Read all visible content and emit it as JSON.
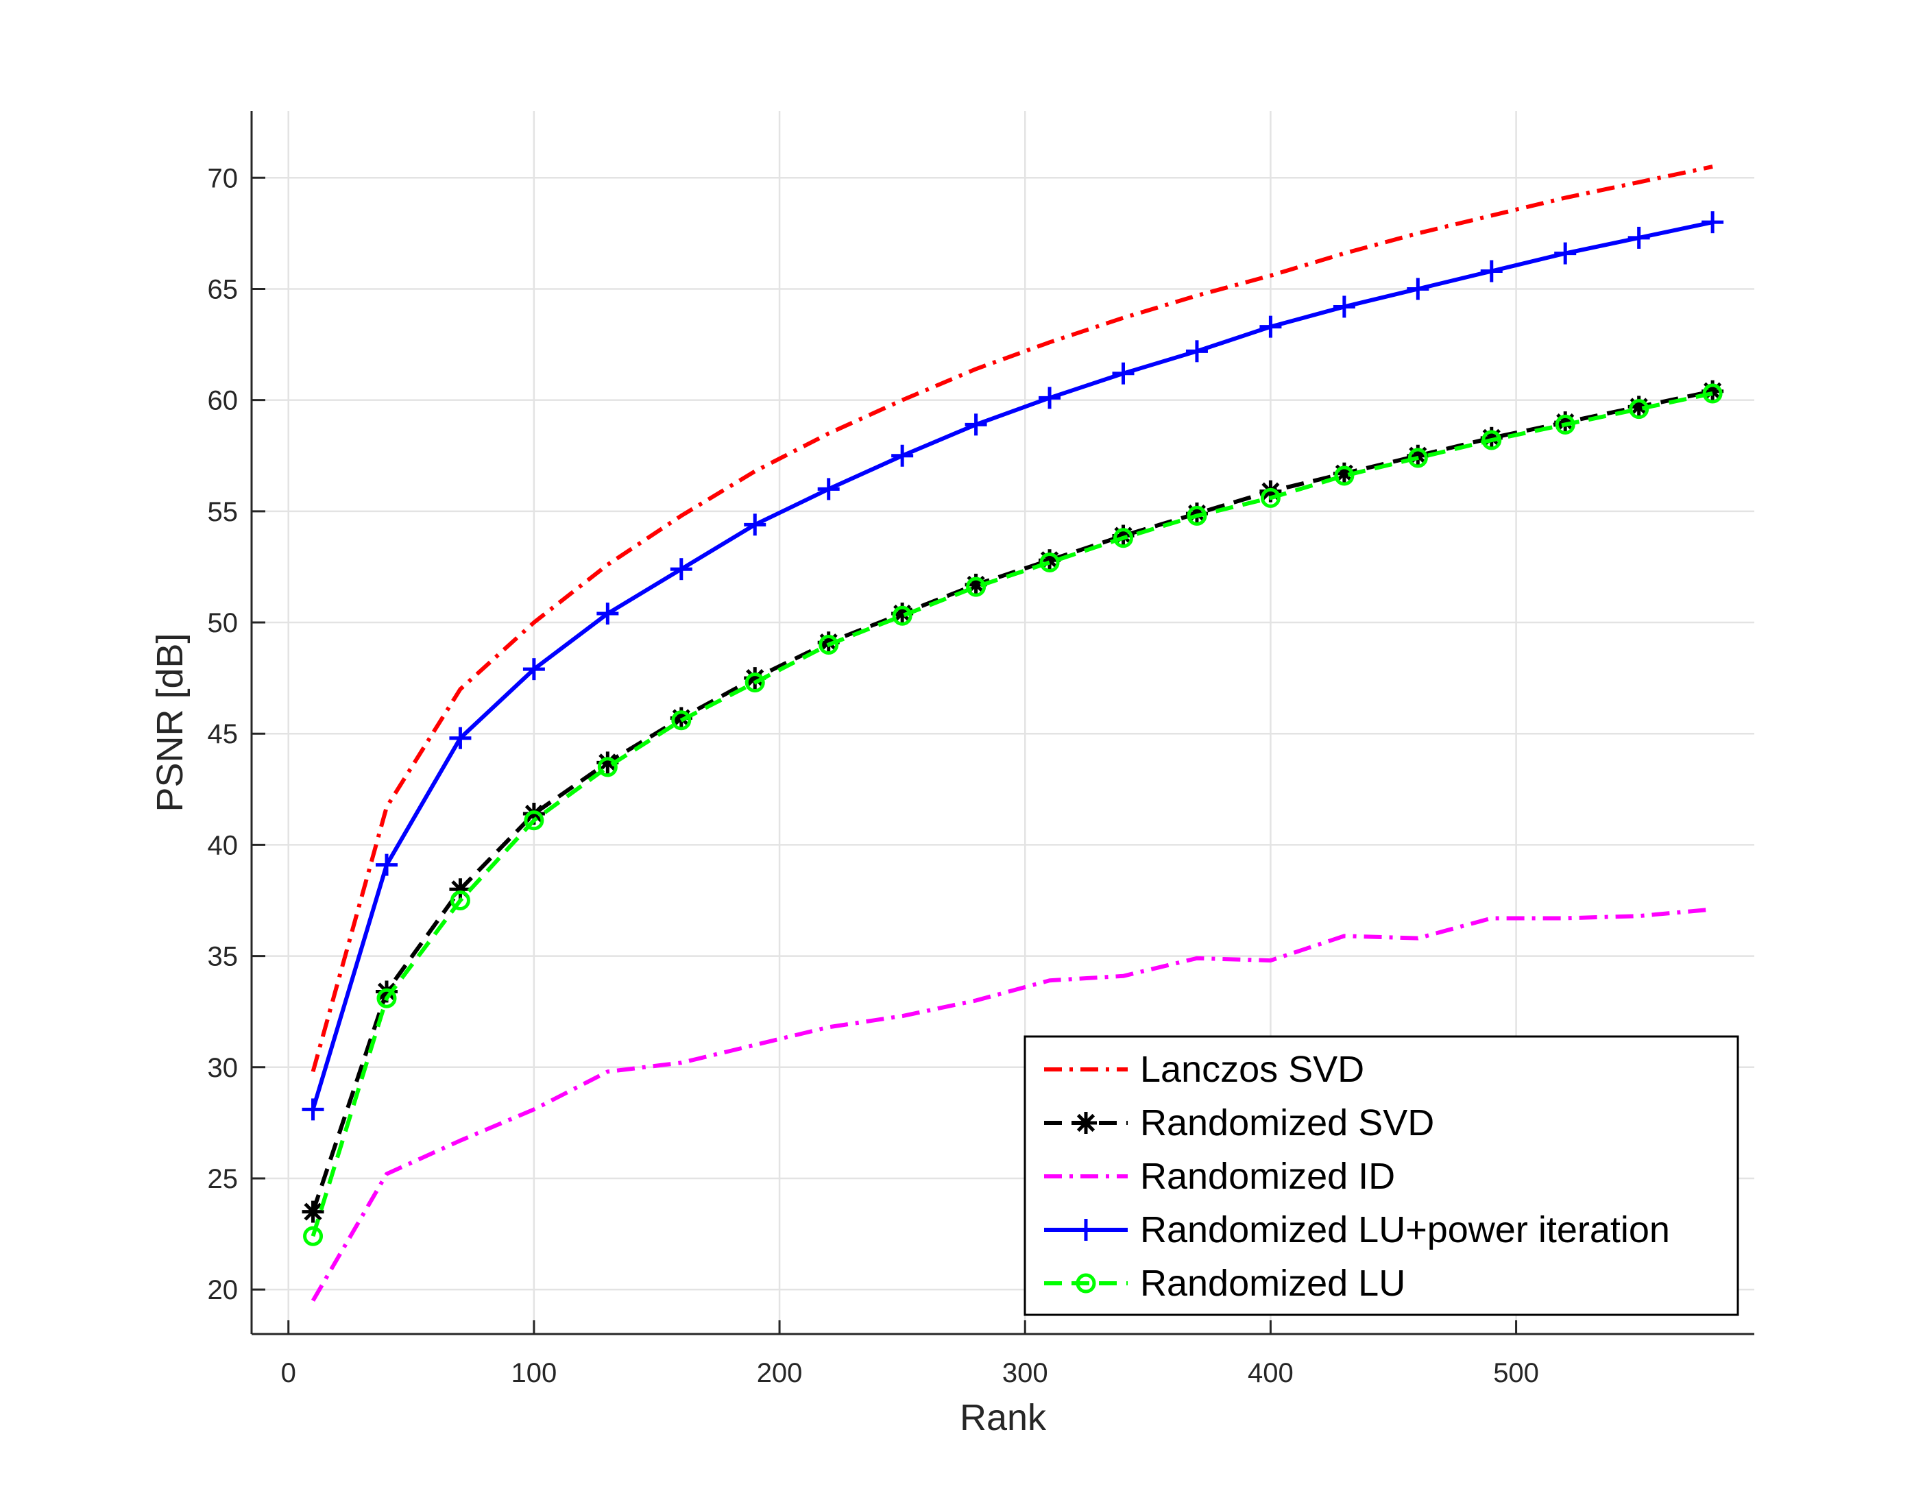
{
  "chart_data": {
    "type": "line",
    "xlabel": "Rank",
    "ylabel": "PSNR [dB]",
    "xlim": [
      -15,
      597
    ],
    "ylim": [
      18,
      73
    ],
    "xticks": [
      0,
      100,
      200,
      300,
      400,
      500
    ],
    "yticks": [
      20,
      25,
      30,
      35,
      40,
      45,
      50,
      55,
      60,
      65,
      70
    ],
    "grid": true,
    "legend_position": "bottom-right",
    "x": [
      10,
      40,
      70,
      100,
      130,
      160,
      190,
      220,
      250,
      280,
      310,
      340,
      370,
      400,
      430,
      460,
      490,
      520,
      550,
      580
    ],
    "series": [
      {
        "name": "Lanczos SVD",
        "color": "#ff0000",
        "line_style": "dash-dot",
        "marker": "none",
        "values": [
          29.8,
          41.7,
          47.0,
          50.0,
          52.6,
          54.8,
          56.8,
          58.5,
          60.0,
          61.4,
          62.6,
          63.7,
          64.7,
          65.6,
          66.6,
          67.5,
          68.3,
          69.1,
          69.8,
          70.5
        ]
      },
      {
        "name": "Randomized SVD",
        "color": "#000000",
        "line_style": "dashed",
        "marker": "asterisk",
        "values": [
          23.5,
          33.4,
          38.0,
          41.4,
          43.7,
          45.7,
          47.5,
          49.1,
          50.4,
          51.7,
          52.8,
          53.9,
          54.9,
          55.9,
          56.7,
          57.5,
          58.3,
          59.0,
          59.7,
          60.4
        ]
      },
      {
        "name": "Randomized ID",
        "color": "#ff00ff",
        "line_style": "dash-dot",
        "marker": "none",
        "values": [
          19.5,
          25.2,
          26.7,
          28.1,
          29.8,
          30.2,
          31.0,
          31.8,
          32.3,
          33.0,
          33.9,
          34.1,
          34.9,
          34.8,
          35.9,
          35.8,
          36.7,
          36.7,
          36.8,
          37.1
        ]
      },
      {
        "name": "Randomized LU+power iteration",
        "color": "#0000ff",
        "line_style": "solid",
        "marker": "plus",
        "values": [
          28.1,
          39.1,
          44.8,
          47.9,
          50.4,
          52.4,
          54.4,
          56.0,
          57.5,
          58.9,
          60.1,
          61.2,
          62.2,
          63.3,
          64.2,
          65.0,
          65.8,
          66.6,
          67.3,
          68.0
        ]
      },
      {
        "name": "Randomized LU",
        "color": "#00ff00",
        "line_style": "dashed",
        "marker": "circle",
        "values": [
          22.4,
          33.1,
          37.5,
          41.1,
          43.5,
          45.6,
          47.3,
          49.0,
          50.3,
          51.6,
          52.7,
          53.8,
          54.8,
          55.6,
          56.6,
          57.4,
          58.2,
          58.9,
          59.6,
          60.3
        ]
      }
    ]
  }
}
